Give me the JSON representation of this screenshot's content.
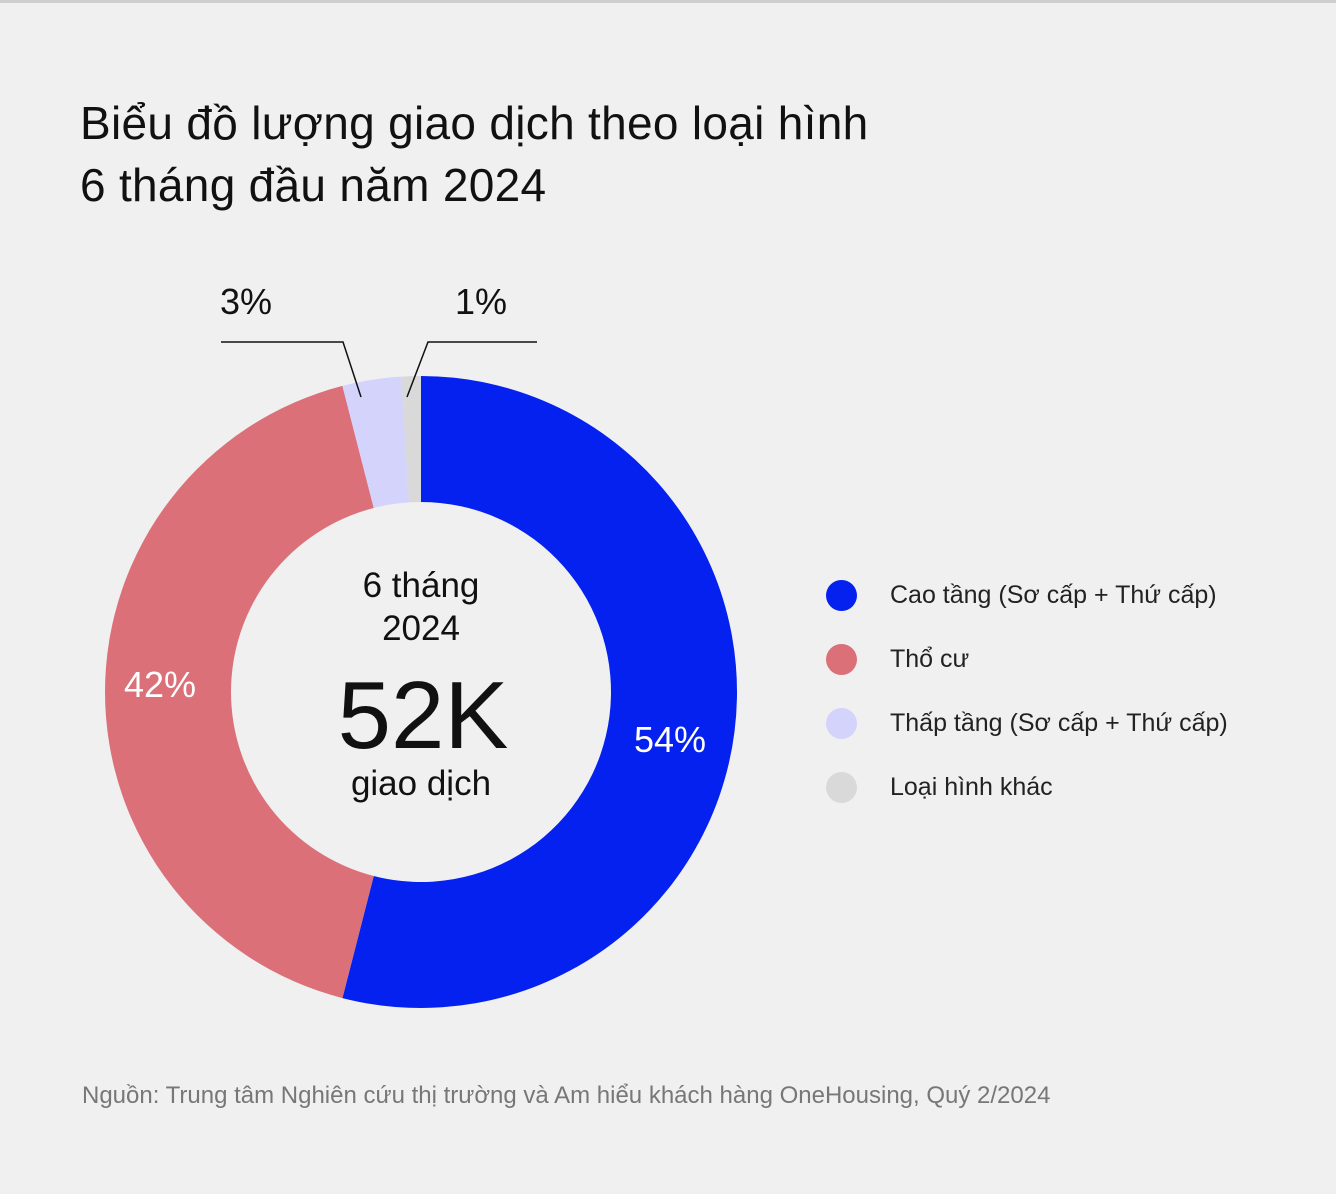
{
  "title_line1": "Biểu đồ lượng giao dịch theo loại hình",
  "title_line2": "6 tháng đầu năm 2024",
  "chart_data": {
    "type": "pie",
    "donut": true,
    "title": "Biểu đồ lượng giao dịch theo loại hình 6 tháng đầu năm 2024",
    "categories": [
      "Cao tầng (Sơ cấp + Thứ cấp)",
      "Thổ cư",
      "Thấp tầng (Sơ cấp + Thứ cấp)",
      "Loại hình khác"
    ],
    "values": [
      54,
      42,
      3,
      1
    ],
    "labels": [
      "54%",
      "42%",
      "3%",
      "1%"
    ],
    "colors": [
      "#0421f0",
      "#db7079",
      "#d3d3fb",
      "#d9d9d9"
    ],
    "center": {
      "line1": "6 tháng",
      "line2": "2024",
      "value": "52K",
      "unit": "giao dịch"
    },
    "legend_position": "right"
  },
  "source": "Nguồn: Trung tâm Nghiên cứu thị trường và Am hiểu khách hàng OneHousing, Quý 2/2024"
}
